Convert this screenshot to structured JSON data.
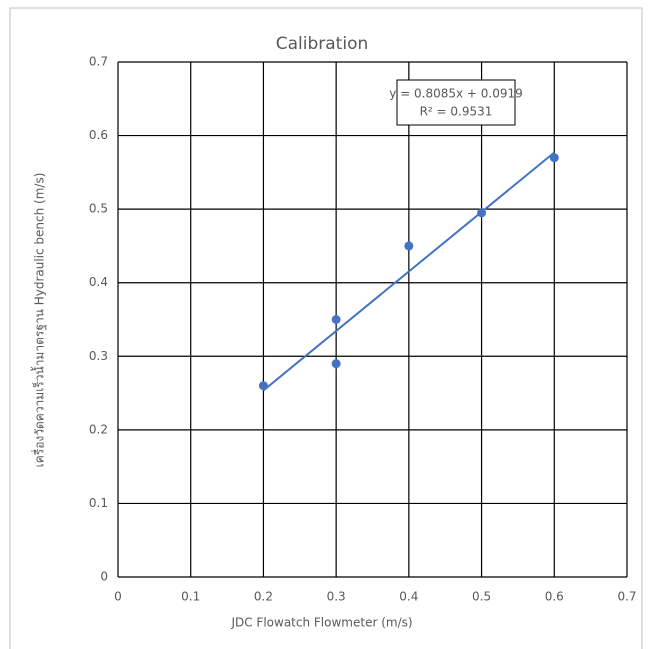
{
  "chart_data": {
    "type": "scatter",
    "title": "Calibration",
    "x_label": "JDC Flowatch Flowmeter (m/s)",
    "y_label": "เครื่องวัดความเร็วน้ำมาตรฐาน Hydraulic bench (m/s)",
    "series": [
      {
        "name": "Calibration",
        "color": "#4472c4",
        "x": [
          0.2,
          0.3,
          0.3,
          0.4,
          0.5,
          0.6
        ],
        "values": [
          0.26,
          0.35,
          0.29,
          0.45,
          0.495,
          0.57
        ]
      }
    ],
    "trendline": {
      "equation": "y = 0.8085x + 0.0919",
      "r2": "R² = 0.9531",
      "slope": 0.8085,
      "intercept": 0.0919
    },
    "xlim": [
      0,
      0.7
    ],
    "xticks": [
      0,
      0.1,
      0.2,
      0.3,
      0.4,
      0.5,
      0.6,
      0.7
    ],
    "ylim": [
      0,
      0.7
    ],
    "yticks": [
      0,
      0.1,
      0.2,
      0.3,
      0.4,
      0.5,
      0.6,
      0.7
    ],
    "grid": true
  }
}
